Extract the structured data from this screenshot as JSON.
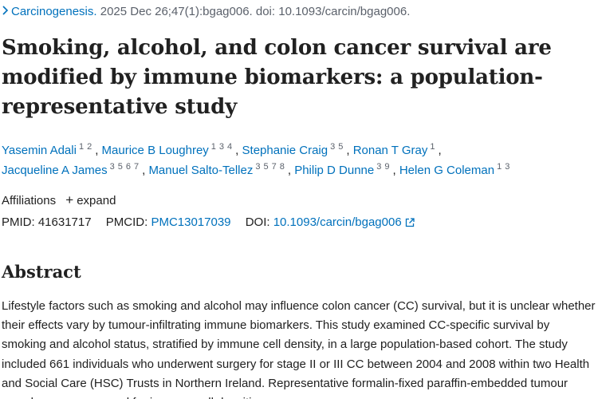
{
  "citation": {
    "journal": "Carcinogenesis.",
    "details": " 2025 Dec 26;47(1):bgag006. doi: 10.1093/carcin/bgag006."
  },
  "title": "Smoking, alcohol, and colon cancer survival are modified by immune biomarkers: a population-representative study",
  "authors": [
    {
      "name": "Yasemin Adali",
      "affils": [
        "1",
        "2"
      ]
    },
    {
      "name": "Maurice B Loughrey",
      "affils": [
        "1",
        "3",
        "4"
      ]
    },
    {
      "name": "Stephanie Craig",
      "affils": [
        "3",
        "5"
      ]
    },
    {
      "name": "Ronan T Gray",
      "affils": [
        "1"
      ]
    },
    {
      "name": "Jacqueline A James",
      "affils": [
        "3",
        "5",
        "6",
        "7"
      ]
    },
    {
      "name": "Manuel Salto-Tellez",
      "affils": [
        "3",
        "5",
        "7",
        "8"
      ]
    },
    {
      "name": "Philip D Dunne",
      "affils": [
        "3",
        "9"
      ]
    },
    {
      "name": "Helen G Coleman",
      "affils": [
        "1",
        "3"
      ]
    }
  ],
  "affiliations": {
    "label": "Affiliations",
    "expand_label": "expand"
  },
  "identifiers": {
    "pmid_label": "PMID:",
    "pmid": "41631717",
    "pmcid_label": "PMCID:",
    "pmcid": "PMC13017039",
    "doi_label": "DOI:",
    "doi": "10.1093/carcin/bgag006"
  },
  "abstract": {
    "heading": "Abstract",
    "text": "Lifestyle factors such as smoking and alcohol may influence colon cancer (CC) survival, but it is unclear whether their effects vary by tumour-infiltrating immune biomarkers. This study examined CC-specific survival by smoking and alcohol status, stratified by immune cell density, in a large population-based cohort. The study included 661 individuals who underwent surgery for stage II or III CC between 2004 and 2008 within two Health and Social Care (HSC) Trusts in Northern Ireland. Representative formalin-fixed paraffin-embedded tumour samples were assessed for immune cell densities."
  },
  "colors": {
    "link": "#0071bc",
    "text": "#212121",
    "muted": "#5b616b"
  },
  "icons": [
    "chevron-right-icon",
    "plus-icon",
    "external-link-icon"
  ]
}
